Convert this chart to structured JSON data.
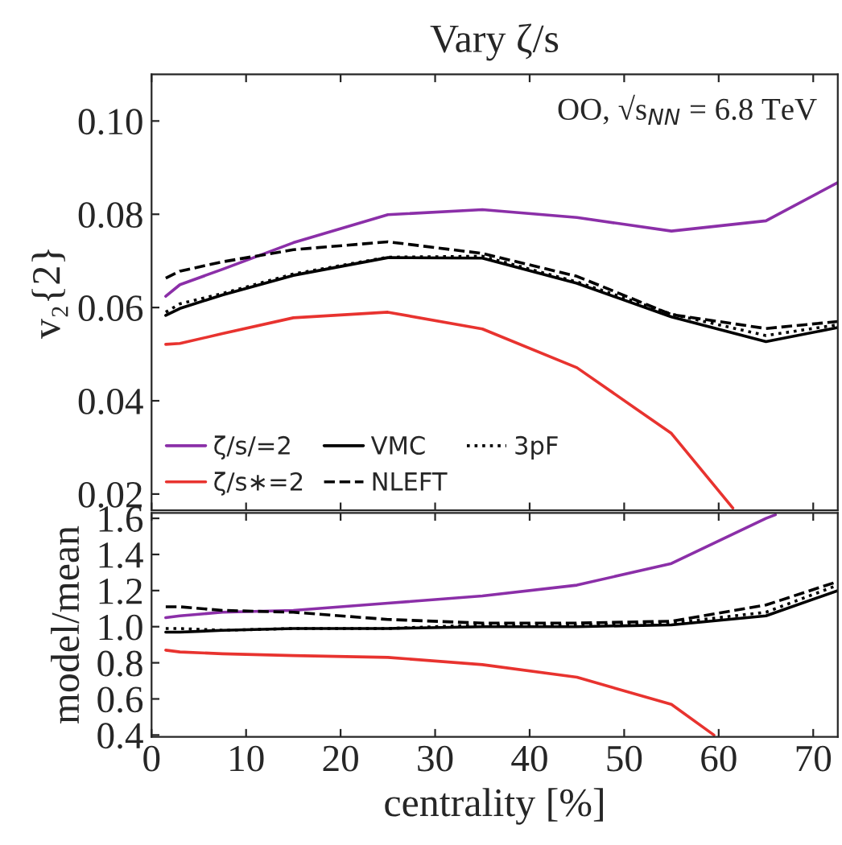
{
  "chart_data": [
    {
      "type": "line",
      "title": "Vary ζ/s",
      "ylabel": "v₂{2}",
      "annotations": [
        "OO, √s$_{NN}$ = 6.8 TeV"
      ],
      "xlim": [
        0,
        72.6
      ],
      "xticks": [
        0,
        10,
        20,
        30,
        40,
        50,
        60,
        70
      ],
      "ylim": [
        0.0165,
        0.11
      ],
      "yticks": [
        0.02,
        0.04,
        0.06,
        0.08,
        {
          "value": 0.1,
          "label": "0.10"
        }
      ],
      "tick_labels": "y",
      "grid": false,
      "legend": "bottom left",
      "series": [
        {
          "name": "ζ/s/=2",
          "color": "#8b2fa8",
          "line_style": "solid",
          "x": [
            1.5,
            3,
            7.5,
            15,
            25,
            35,
            45,
            55,
            65,
            72.6
          ],
          "values": [
            0.0624,
            0.0649,
            0.0682,
            0.0739,
            0.0799,
            0.081,
            0.0793,
            0.0764,
            0.0786,
            0.0868
          ]
        },
        {
          "name": "ζ/s∗=2",
          "color": "#e8332f",
          "line_style": "solid",
          "x": [
            1.5,
            3,
            7.5,
            15,
            25,
            35,
            45,
            55,
            61.5
          ],
          "values": [
            0.0521,
            0.0523,
            0.0544,
            0.0578,
            0.059,
            0.0554,
            0.0471,
            0.033,
            0.017
          ]
        },
        {
          "name": "VMC",
          "color": "#000000",
          "line_style": "solid",
          "x": [
            1.5,
            3,
            7.5,
            15,
            25,
            35,
            45,
            55,
            65,
            72.6
          ],
          "values": [
            0.0583,
            0.0598,
            0.0627,
            0.0669,
            0.0707,
            0.0706,
            0.0652,
            0.058,
            0.0527,
            0.0557
          ]
        },
        {
          "name": "NLEFT",
          "color": "#000000",
          "line_style": "dashed",
          "x": [
            1.5,
            3,
            7.5,
            15,
            25,
            35,
            45,
            55,
            65,
            72.6
          ],
          "values": [
            0.0663,
            0.0678,
            0.0698,
            0.0724,
            0.0741,
            0.0716,
            0.0667,
            0.0585,
            0.0555,
            0.057
          ]
        },
        {
          "name": "3pF",
          "color": "#000000",
          "line_style": "dotted",
          "x": [
            1.5,
            3,
            7.5,
            15,
            25,
            35,
            45,
            55,
            65,
            72.6
          ],
          "values": [
            0.059,
            0.0608,
            0.063,
            0.0672,
            0.0708,
            0.071,
            0.0655,
            0.0586,
            0.054,
            0.0563
          ]
        }
      ]
    },
    {
      "type": "line",
      "xlabel": "centrality [%]",
      "ylabel": "model/mean",
      "xlim": [
        0,
        72.6
      ],
      "xticks": [
        0,
        10,
        20,
        30,
        40,
        50,
        60,
        70
      ],
      "ylim": [
        0.39,
        1.63
      ],
      "yticks": [
        0.4,
        0.6,
        0.8,
        {
          "value": 1.0,
          "label": "1.0"
        },
        1.2,
        1.4,
        1.6
      ],
      "grid": false,
      "series": [
        {
          "color": "#8b2fa8",
          "line_style": "solid",
          "x": [
            1.5,
            3,
            7.5,
            15,
            25,
            35,
            45,
            55,
            65,
            66
          ],
          "values": [
            1.05,
            1.06,
            1.08,
            1.09,
            1.13,
            1.17,
            1.23,
            1.35,
            1.6,
            1.62
          ]
        },
        {
          "color": "#e8332f",
          "line_style": "solid",
          "x": [
            1.5,
            3,
            7.5,
            15,
            25,
            35,
            45,
            55,
            59.5
          ],
          "values": [
            0.87,
            0.86,
            0.85,
            0.84,
            0.83,
            0.79,
            0.72,
            0.57,
            0.4
          ]
        },
        {
          "color": "#000000",
          "line_style": "solid",
          "x": [
            1.5,
            3,
            7.5,
            15,
            25,
            35,
            45,
            55,
            65,
            72.6
          ],
          "values": [
            0.97,
            0.97,
            0.98,
            0.99,
            0.99,
            1.0,
            1.0,
            1.01,
            1.06,
            1.2
          ]
        },
        {
          "color": "#000000",
          "line_style": "dashed",
          "x": [
            1.5,
            3,
            7.5,
            15,
            25,
            35,
            45,
            55,
            65,
            72.6
          ],
          "values": [
            1.11,
            1.11,
            1.09,
            1.08,
            1.04,
            1.02,
            1.02,
            1.03,
            1.12,
            1.25
          ]
        },
        {
          "color": "#000000",
          "line_style": "dotted",
          "x": [
            1.5,
            3,
            7.5,
            15,
            25,
            35,
            45,
            55,
            65,
            72.6
          ],
          "values": [
            0.99,
            0.99,
            0.98,
            0.99,
            0.99,
            1.01,
            1.01,
            1.02,
            1.08,
            1.23
          ]
        }
      ]
    }
  ]
}
